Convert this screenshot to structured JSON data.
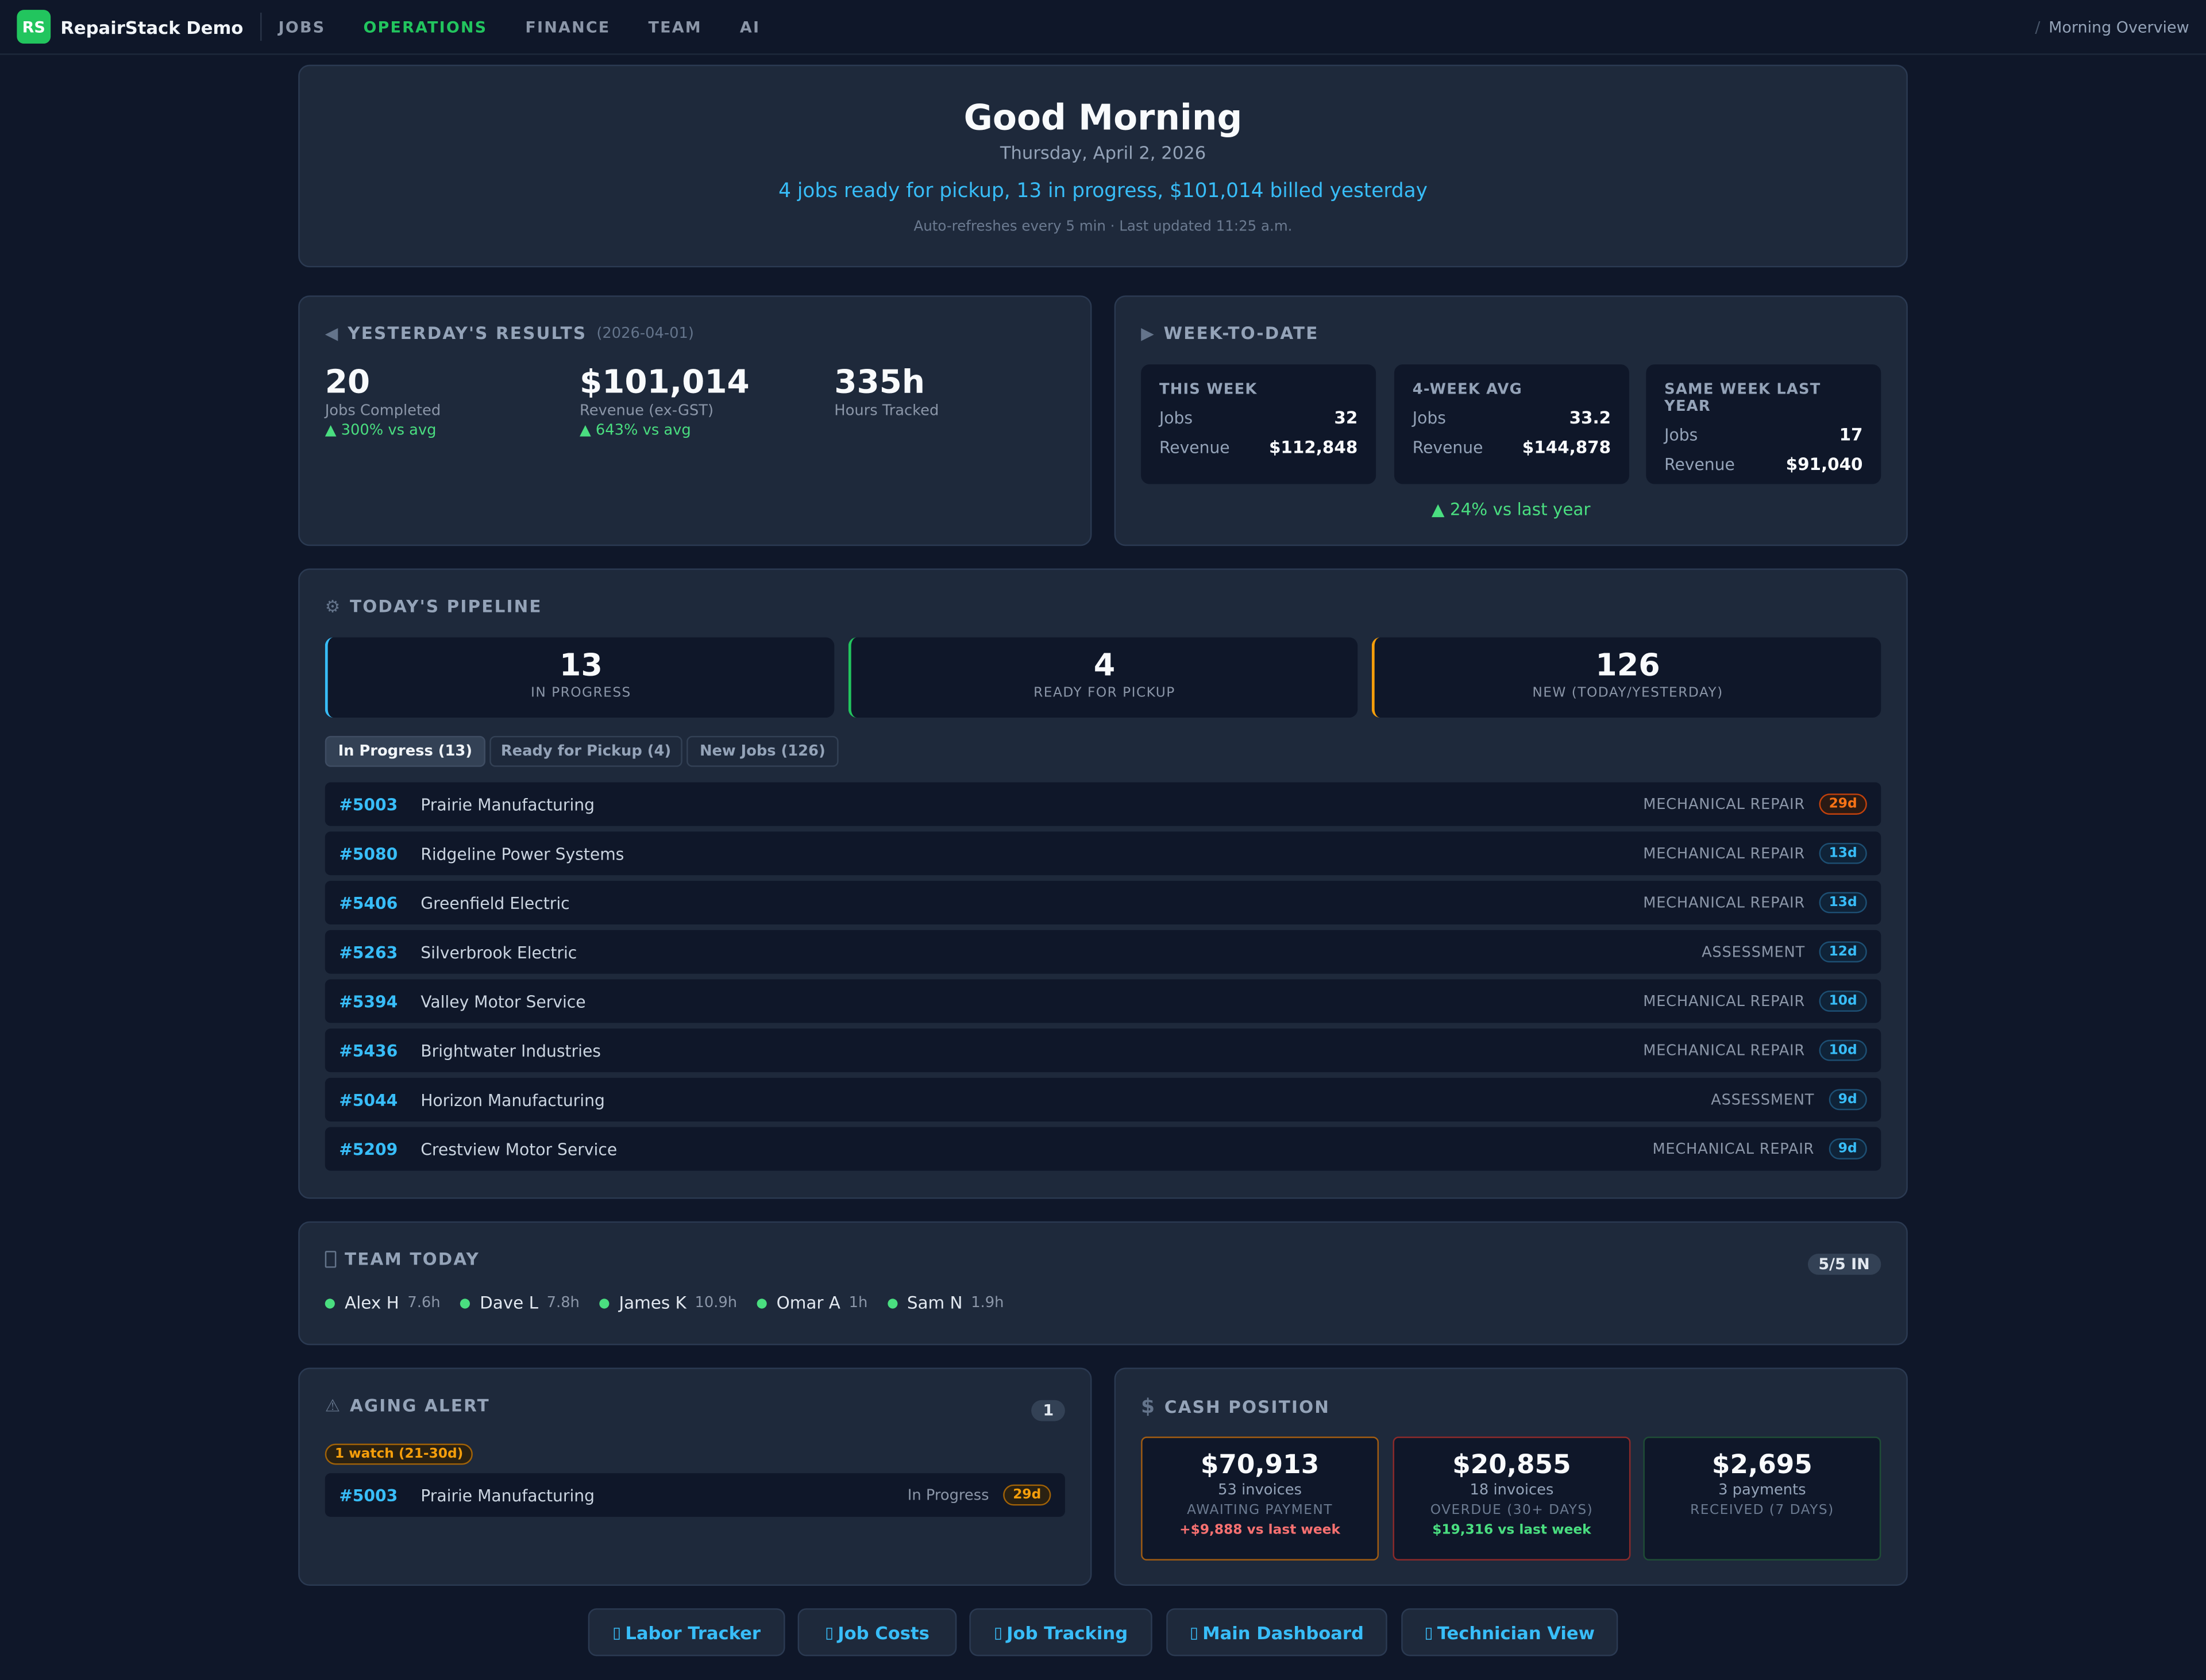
{
  "nav": {
    "logo": "RS",
    "brand": "RepairStack Demo",
    "links": [
      "JOBS",
      "OPERATIONS",
      "FINANCE",
      "TEAM",
      "AI"
    ],
    "active": "OPERATIONS",
    "breadcrumb": "Morning Overview"
  },
  "hero": {
    "greeting": "Good Morning",
    "date": "Thursday, April 2, 2026",
    "summary": "4 jobs ready for pickup, 13 in progress, $101,014 billed yesterday",
    "refresh": "Auto-refreshes every 5 min · Last updated 11:25 a.m."
  },
  "yesterday": {
    "title": "YESTERDAY'S RESULTS",
    "date": "(2026-04-01)",
    "stats": [
      {
        "value": "20",
        "label": "Jobs Completed",
        "delta": "▲ 300% vs avg"
      },
      {
        "value": "$101,014",
        "label": "Revenue (ex-GST)",
        "delta": "▲ 643% vs avg"
      },
      {
        "value": "335h",
        "label": "Hours Tracked",
        "delta": ""
      }
    ]
  },
  "week": {
    "title": "WEEK-TO-DATE",
    "boxes": [
      {
        "head": "THIS WEEK",
        "jobs_label": "Jobs",
        "jobs": "32",
        "rev_label": "Revenue",
        "revenue": "$112,848"
      },
      {
        "head": "4-WEEK AVG",
        "jobs_label": "Jobs",
        "jobs": "33.2",
        "rev_label": "Revenue",
        "revenue": "$144,878"
      },
      {
        "head": "SAME WEEK LAST YEAR",
        "jobs_label": "Jobs",
        "jobs": "17",
        "rev_label": "Revenue",
        "revenue": "$91,040"
      }
    ],
    "delta": "▲ 24% vs last year"
  },
  "pipeline": {
    "title": "TODAY'S PIPELINE",
    "boxes": [
      {
        "num": "13",
        "label": "IN PROGRESS",
        "color": "#38bdf8"
      },
      {
        "num": "4",
        "label": "READY FOR PICKUP",
        "color": "#22c55e"
      },
      {
        "num": "126",
        "label": "NEW (TODAY/YESTERDAY)",
        "color": "#f59e0b"
      }
    ],
    "tabs": [
      "In Progress (13)",
      "Ready for Pickup (4)",
      "New Jobs (126)"
    ],
    "jobs": [
      {
        "id": "#5003",
        "name": "Prairie Manufacturing",
        "type": "MECHANICAL REPAIR",
        "age": "29d"
      },
      {
        "id": "#5080",
        "name": "Ridgeline Power Systems",
        "type": "MECHANICAL REPAIR",
        "age": "13d"
      },
      {
        "id": "#5406",
        "name": "Greenfield Electric",
        "type": "MECHANICAL REPAIR",
        "age": "13d"
      },
      {
        "id": "#5263",
        "name": "Silverbrook Electric",
        "type": "ASSESSMENT",
        "age": "12d"
      },
      {
        "id": "#5394",
        "name": "Valley Motor Service",
        "type": "MECHANICAL REPAIR",
        "age": "10d"
      },
      {
        "id": "#5436",
        "name": "Brightwater Industries",
        "type": "MECHANICAL REPAIR",
        "age": "10d"
      },
      {
        "id": "#5044",
        "name": "Horizon Manufacturing",
        "type": "ASSESSMENT",
        "age": "9d"
      },
      {
        "id": "#5209",
        "name": "Crestview Motor Service",
        "type": "MECHANICAL REPAIR",
        "age": "9d"
      }
    ]
  },
  "team": {
    "title": "TEAM TODAY",
    "count": "5/5 IN",
    "techs": [
      {
        "name": "Alex H",
        "hours": "7.6h"
      },
      {
        "name": "Dave L",
        "hours": "7.8h"
      },
      {
        "name": "James K",
        "hours": "10.9h"
      },
      {
        "name": "Omar A",
        "hours": "1h"
      },
      {
        "name": "Sam N",
        "hours": "1.9h"
      }
    ]
  },
  "aging": {
    "title": "AGING ALERT",
    "count": "1",
    "watch": "1 watch (21-30d)",
    "item": {
      "id": "#5003",
      "name": "Prairie Manufacturing",
      "status": "In Progress",
      "age": "29d"
    }
  },
  "cash": {
    "title": "CASH POSITION",
    "boxes": [
      {
        "amount": "$70,913",
        "sub": "53 invoices",
        "label": "AWAITING PAYMENT",
        "delta": "+$9,888 vs last week",
        "delta_color": "#f87171",
        "border": "#a15c12"
      },
      {
        "amount": "$20,855",
        "sub": "18 invoices",
        "label": "OVERDUE (30+ DAYS)",
        "delta": "$19,316 vs last week",
        "delta_color": "#4ade80",
        "border": "#8b2a2a"
      },
      {
        "amount": "$2,695",
        "sub": "3 payments",
        "label": "RECEIVED (7 DAYS)",
        "delta": "",
        "delta_color": "#4ade80",
        "border": "#1f4d36"
      }
    ]
  },
  "quicklinks": [
    "Labor Tracker",
    "Job Costs",
    "Job Tracking",
    "Main Dashboard",
    "Technician View"
  ],
  "colors": {
    "accent": "#38bdf8",
    "brand": "#22c55e",
    "bg": "#0f1729",
    "card": "#1e293b"
  }
}
